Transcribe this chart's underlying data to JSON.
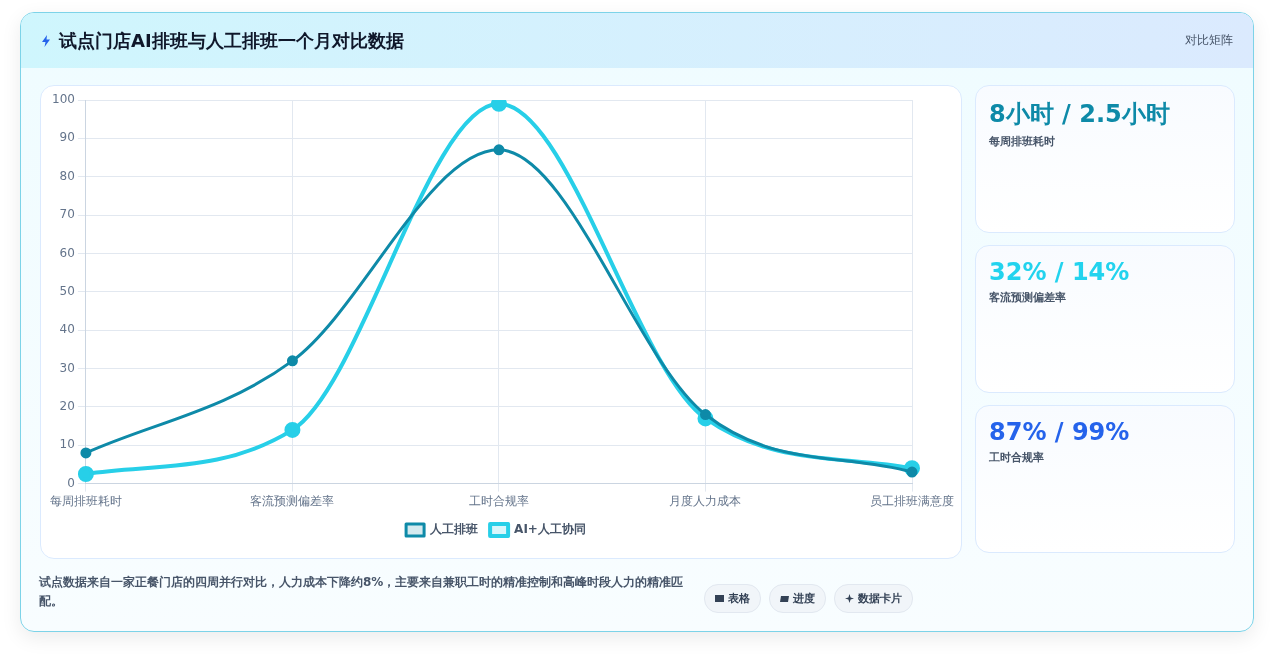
{
  "chart_data": [
    {
      "type": "line",
      "title": "试点门店AI排班与人工排班一个月对比数据",
      "categories": [
        "每周排班耗时",
        "客流预测偏差率",
        "工时合规率",
        "月度人力成本",
        "员工排班满意度"
      ],
      "series": [
        {
          "name": "人工排班",
          "color": "#0e8aa8",
          "values": [
            8,
            32,
            87,
            18,
            3
          ]
        },
        {
          "name": "AI+人工协同",
          "color": "#27cfe8",
          "values": [
            2.5,
            14,
            99,
            17,
            4
          ]
        }
      ],
      "ylim": [
        0,
        100
      ],
      "yticks": [
        0,
        10,
        20,
        30,
        40,
        50,
        60,
        70,
        80,
        90,
        100
      ],
      "grid": true,
      "legend": "bottom",
      "marker": "circle",
      "line_style": "solid",
      "annotations": [
        "对比矩阵",
        "试点数据来自一家正餐门店的四周并行对比，人力成本下降约8%，主要来自兼职工时的精准控制和高峰时段人力的精准匹配。",
        "表格",
        "进度",
        "数据卡片"
      ]
    },
    {
      "type": "other",
      "annotations": [
        "8小时 / 2.5小时",
        "每周排班耗时",
        "32% / 14%",
        "客流预测偏差率",
        "87% / 99%",
        "工时合规率"
      ]
    }
  ]
}
